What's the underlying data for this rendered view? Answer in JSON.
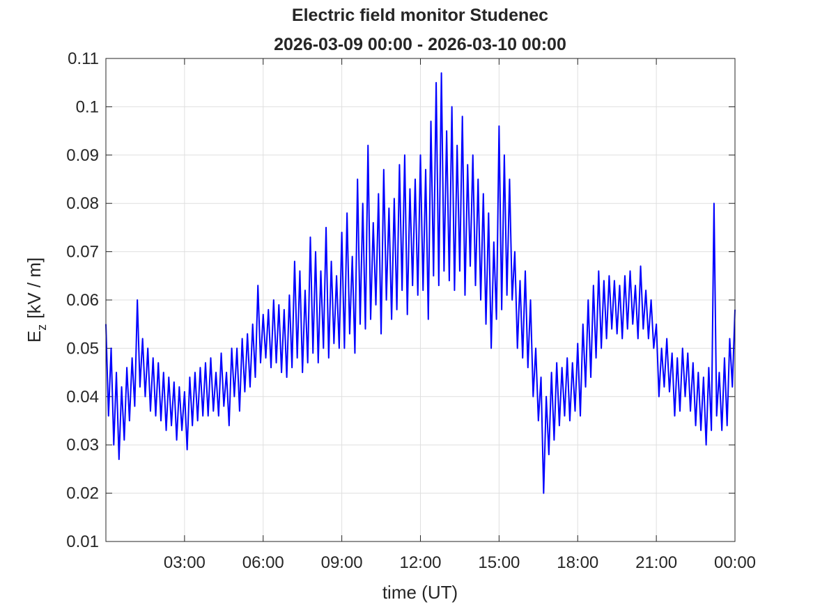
{
  "chart_data": {
    "type": "line",
    "title": "Electric field monitor Studenec",
    "subtitle": "2026-03-09 00:00 - 2026-03-10 00:00",
    "xlabel": "time (UT)",
    "ylabel": [
      "E",
      "z",
      "[kV / m]"
    ],
    "xlim": [
      0,
      24
    ],
    "xticks": [
      {
        "value": 3,
        "label": "03:00"
      },
      {
        "value": 6,
        "label": "06:00"
      },
      {
        "value": 9,
        "label": "09:00"
      },
      {
        "value": 12,
        "label": "12:00"
      },
      {
        "value": 15,
        "label": "15:00"
      },
      {
        "value": 18,
        "label": "18:00"
      },
      {
        "value": 21,
        "label": "21:00"
      },
      {
        "value": 24,
        "label": "00:00"
      }
    ],
    "ylim": [
      0.01,
      0.11
    ],
    "yticks": [
      0.01,
      0.02,
      0.03,
      0.04,
      0.05,
      0.06,
      0.07,
      0.08,
      0.09,
      0.1,
      0.11
    ],
    "grid": true,
    "x": [
      0,
      0.1,
      0.2,
      0.3,
      0.4,
      0.5,
      0.6,
      0.7,
      0.8,
      0.9,
      1,
      1.1,
      1.2,
      1.3,
      1.4,
      1.5,
      1.6,
      1.7,
      1.8,
      1.9,
      2,
      2.1,
      2.2,
      2.3,
      2.4,
      2.5,
      2.6,
      2.7,
      2.8,
      2.9,
      3,
      3.1,
      3.2,
      3.3,
      3.4,
      3.5,
      3.6,
      3.7,
      3.8,
      3.9,
      4,
      4.1,
      4.2,
      4.3,
      4.4,
      4.5,
      4.6,
      4.7,
      4.8,
      4.9,
      5,
      5.1,
      5.2,
      5.3,
      5.4,
      5.5,
      5.6,
      5.7,
      5.8,
      5.9,
      6,
      6.1,
      6.2,
      6.3,
      6.4,
      6.5,
      6.6,
      6.7,
      6.8,
      6.9,
      7,
      7.1,
      7.2,
      7.3,
      7.4,
      7.5,
      7.6,
      7.7,
      7.8,
      7.9,
      8,
      8.1,
      8.2,
      8.3,
      8.4,
      8.5,
      8.6,
      8.7,
      8.8,
      8.9,
      9,
      9.1,
      9.2,
      9.3,
      9.4,
      9.5,
      9.6,
      9.7,
      9.8,
      9.9,
      10,
      10.1,
      10.2,
      10.3,
      10.4,
      10.5,
      10.6,
      10.7,
      10.8,
      10.9,
      11,
      11.1,
      11.2,
      11.3,
      11.4,
      11.5,
      11.6,
      11.7,
      11.8,
      11.9,
      12,
      12.1,
      12.2,
      12.3,
      12.4,
      12.5,
      12.6,
      12.7,
      12.8,
      12.9,
      13,
      13.1,
      13.2,
      13.3,
      13.4,
      13.5,
      13.6,
      13.7,
      13.8,
      13.9,
      14,
      14.1,
      14.2,
      14.3,
      14.4,
      14.5,
      14.6,
      14.7,
      14.8,
      14.9,
      15,
      15.1,
      15.2,
      15.3,
      15.4,
      15.5,
      15.6,
      15.7,
      15.8,
      15.9,
      16,
      16.1,
      16.2,
      16.3,
      16.4,
      16.5,
      16.6,
      16.7,
      16.8,
      16.9,
      17,
      17.1,
      17.2,
      17.3,
      17.4,
      17.5,
      17.6,
      17.7,
      17.8,
      17.9,
      18,
      18.1,
      18.2,
      18.3,
      18.4,
      18.5,
      18.6,
      18.7,
      18.8,
      18.9,
      19,
      19.1,
      19.2,
      19.3,
      19.4,
      19.5,
      19.6,
      19.7,
      19.8,
      19.9,
      20,
      20.1,
      20.2,
      20.3,
      20.4,
      20.5,
      20.6,
      20.7,
      20.8,
      20.9,
      21,
      21.1,
      21.2,
      21.3,
      21.4,
      21.5,
      21.6,
      21.7,
      21.8,
      21.9,
      22,
      22.1,
      22.2,
      22.3,
      22.4,
      22.5,
      22.6,
      22.7,
      22.8,
      22.9,
      23,
      23.1,
      23.2,
      23.3,
      23.4,
      23.5,
      23.6,
      23.7,
      23.8,
      23.9,
      24
    ],
    "series": [
      {
        "color": "#0000ff",
        "values": [
          0.055,
          0.036,
          0.05,
          0.03,
          0.045,
          0.027,
          0.042,
          0.031,
          0.046,
          0.035,
          0.048,
          0.038,
          0.06,
          0.042,
          0.052,
          0.04,
          0.05,
          0.037,
          0.048,
          0.036,
          0.047,
          0.035,
          0.045,
          0.033,
          0.044,
          0.034,
          0.043,
          0.031,
          0.042,
          0.033,
          0.041,
          0.029,
          0.044,
          0.034,
          0.045,
          0.035,
          0.046,
          0.036,
          0.047,
          0.036,
          0.048,
          0.037,
          0.045,
          0.036,
          0.049,
          0.038,
          0.045,
          0.034,
          0.05,
          0.04,
          0.05,
          0.037,
          0.052,
          0.041,
          0.053,
          0.042,
          0.055,
          0.044,
          0.063,
          0.047,
          0.057,
          0.048,
          0.058,
          0.046,
          0.06,
          0.047,
          0.059,
          0.045,
          0.058,
          0.044,
          0.061,
          0.046,
          0.068,
          0.048,
          0.066,
          0.045,
          0.062,
          0.047,
          0.073,
          0.049,
          0.07,
          0.047,
          0.066,
          0.05,
          0.075,
          0.048,
          0.068,
          0.051,
          0.065,
          0.05,
          0.074,
          0.05,
          0.078,
          0.053,
          0.069,
          0.049,
          0.085,
          0.055,
          0.08,
          0.054,
          0.092,
          0.056,
          0.076,
          0.059,
          0.082,
          0.053,
          0.087,
          0.06,
          0.079,
          0.056,
          0.081,
          0.058,
          0.088,
          0.062,
          0.09,
          0.057,
          0.083,
          0.063,
          0.085,
          0.061,
          0.09,
          0.062,
          0.087,
          0.056,
          0.097,
          0.065,
          0.105,
          0.063,
          0.107,
          0.066,
          0.095,
          0.064,
          0.1,
          0.062,
          0.092,
          0.066,
          0.098,
          0.061,
          0.088,
          0.067,
          0.09,
          0.063,
          0.085,
          0.06,
          0.082,
          0.055,
          0.078,
          0.05,
          0.072,
          0.056,
          0.096,
          0.058,
          0.09,
          0.061,
          0.085,
          0.06,
          0.07,
          0.05,
          0.064,
          0.048,
          0.066,
          0.046,
          0.06,
          0.04,
          0.05,
          0.035,
          0.044,
          0.02,
          0.04,
          0.028,
          0.045,
          0.031,
          0.047,
          0.034,
          0.046,
          0.036,
          0.048,
          0.035,
          0.047,
          0.037,
          0.051,
          0.036,
          0.055,
          0.042,
          0.06,
          0.044,
          0.063,
          0.048,
          0.066,
          0.05,
          0.064,
          0.052,
          0.065,
          0.054,
          0.064,
          0.053,
          0.063,
          0.052,
          0.065,
          0.054,
          0.066,
          0.055,
          0.063,
          0.052,
          0.067,
          0.054,
          0.062,
          0.052,
          0.06,
          0.05,
          0.055,
          0.04,
          0.05,
          0.042,
          0.052,
          0.041,
          0.049,
          0.036,
          0.048,
          0.037,
          0.05,
          0.04,
          0.049,
          0.037,
          0.047,
          0.034,
          0.045,
          0.033,
          0.044,
          0.03,
          0.046,
          0.033,
          0.08,
          0.036,
          0.045,
          0.033,
          0.048,
          0.034,
          0.052,
          0.042,
          0.058
        ]
      }
    ]
  }
}
